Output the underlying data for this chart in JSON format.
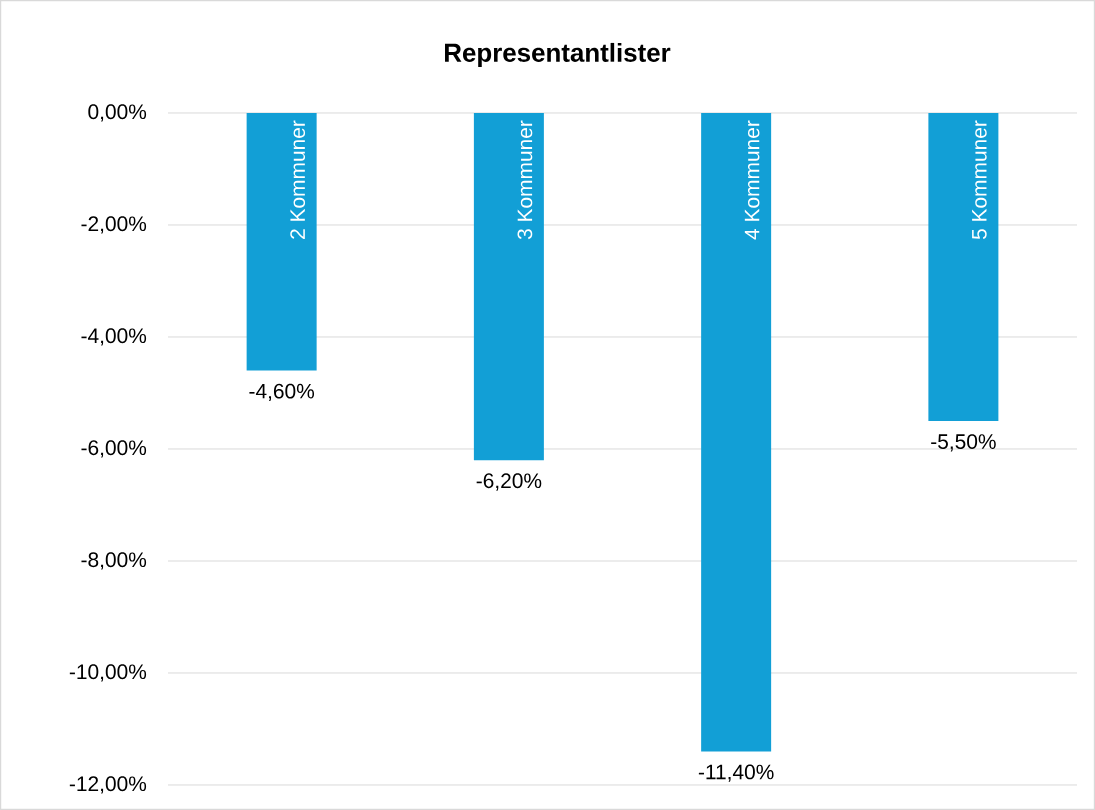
{
  "chart_data": {
    "type": "bar",
    "title": "Representantlister",
    "categories": [
      "2 Kommuner",
      "3 Kommuner",
      "4 Kommuner",
      "5 Kommuner"
    ],
    "values": [
      -4.6,
      -6.2,
      -11.4,
      -5.5
    ],
    "value_labels": [
      "-4,60%",
      "-6,20%",
      "-11,40%",
      "-5,50%"
    ],
    "color": "#129fd6",
    "ylim": [
      -12,
      0
    ],
    "yticks": [
      {
        "value": 0,
        "label": "0,00%"
      },
      {
        "value": -2,
        "label": "-2,00%"
      },
      {
        "value": -4,
        "label": "-4,00%"
      },
      {
        "value": -6,
        "label": "-6,00%"
      },
      {
        "value": -8,
        "label": "-8,00%"
      },
      {
        "value": -10,
        "label": "-10,00%"
      },
      {
        "value": -12,
        "label": "-12,00%"
      }
    ],
    "grid": true
  }
}
